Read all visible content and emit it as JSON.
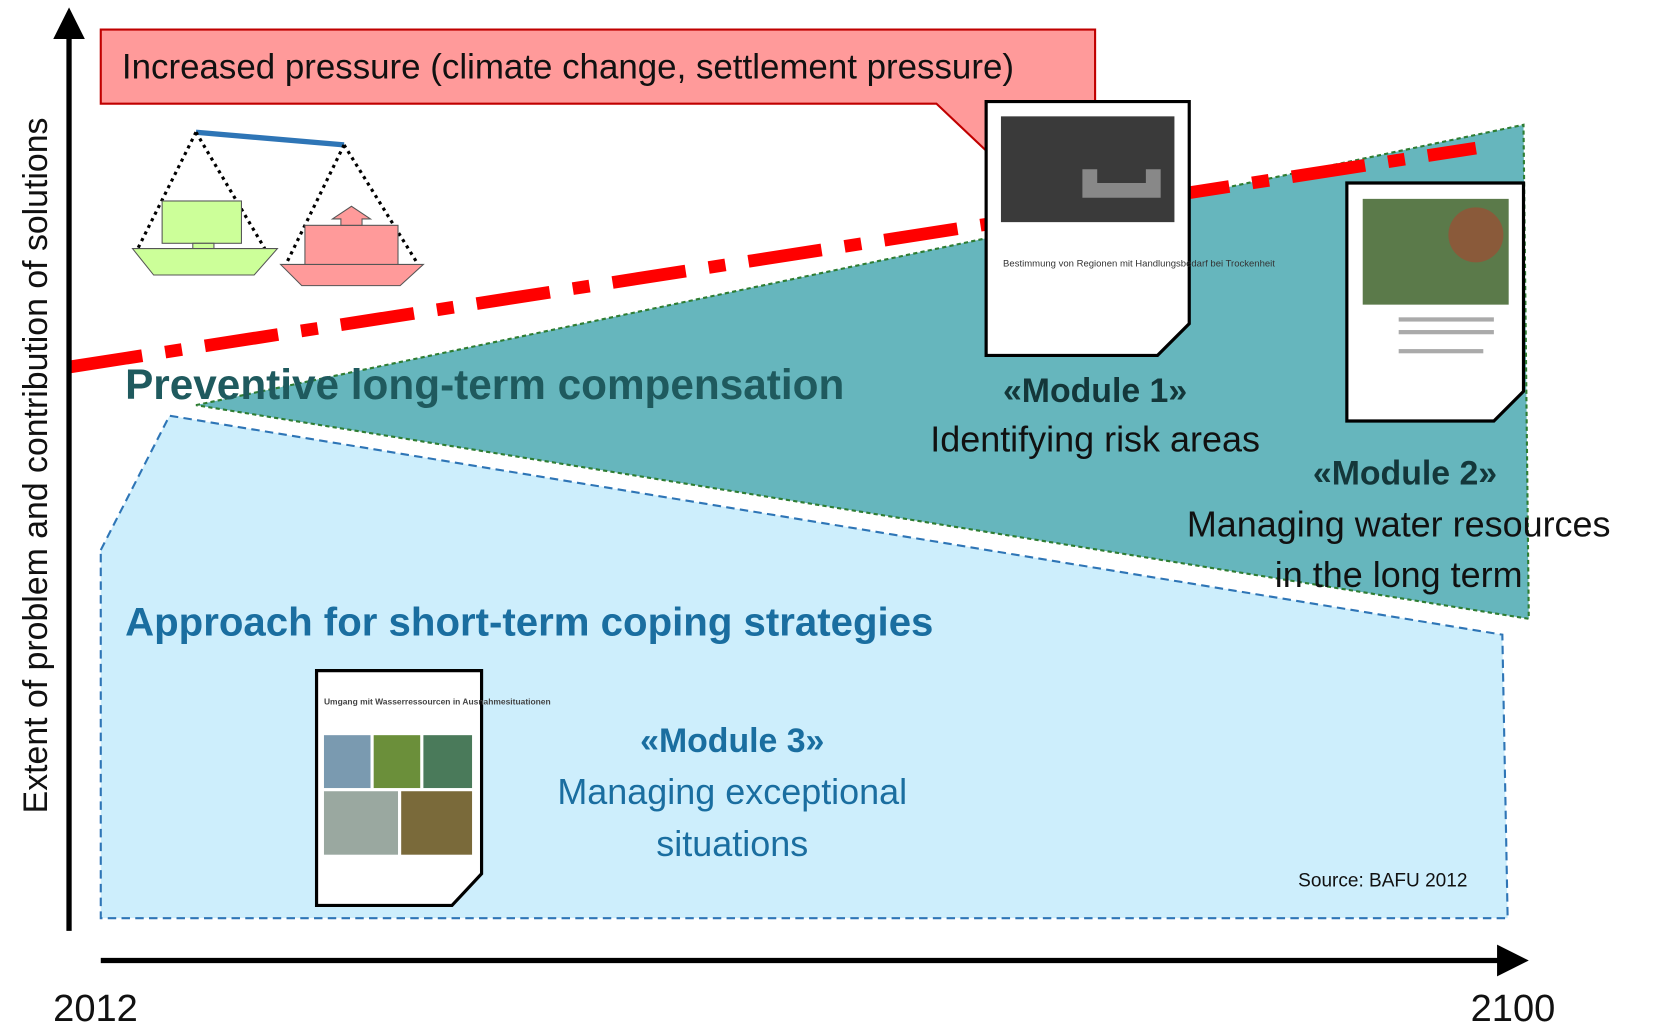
{
  "axis": {
    "y_label": "Extent of problem and contribution of solutions",
    "x_start": "2012",
    "x_end": "2100"
  },
  "callout": "Increased pressure (climate change, settlement pressure)",
  "regions": [
    {
      "label": "Preventive long-term compensation"
    },
    {
      "label": "Approach for short-term coping strategies"
    }
  ],
  "modules": [
    {
      "name": "«Module 1»",
      "description": [
        "Identifying risk areas"
      ],
      "document": "Bestimmung von Regionen mit Handlungsbedarf bei Trockenheit"
    },
    {
      "name": "«Module 2»",
      "description": [
        "Managing water resources",
        "in the long term"
      ]
    },
    {
      "name": "«Module 3»",
      "description": [
        "Managing exceptional",
        "situations"
      ],
      "document": "Umgang mit Wasserressourcen in Ausnahmesituationen"
    }
  ],
  "source": "Source: BAFU 2012"
}
